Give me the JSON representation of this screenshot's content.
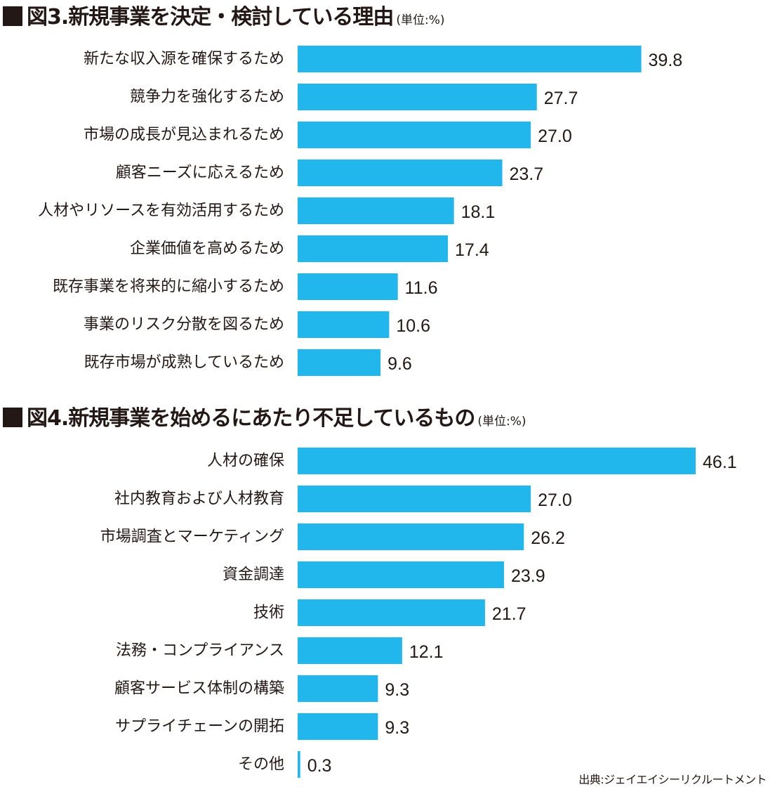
{
  "accent_color": "#21b7ec",
  "text_color": "#231815",
  "chart_data": [
    {
      "type": "bar",
      "orientation": "horizontal",
      "title": "図3.新規事業を決定・検討している理由",
      "unit": "(単位:%)",
      "categories": [
        "新たな収入源を確保するため",
        "競争力を強化するため",
        "市場の成長が見込まれるため",
        "顧客ニーズに応えるため",
        "人材やリソースを有効活用するため",
        "企業価値を高めるため",
        "既存事業を将来的に縮小するため",
        "事業のリスク分散を図るため",
        "既存市場が成熟しているため"
      ],
      "values": [
        39.8,
        27.7,
        27.0,
        23.7,
        18.1,
        17.4,
        11.6,
        10.6,
        9.6
      ],
      "value_labels": [
        "39.8",
        "27.7",
        "27.0",
        "23.7",
        "18.1",
        "17.4",
        "11.6",
        "10.6",
        "9.6"
      ],
      "xlim": [
        0,
        50
      ],
      "grid": false,
      "legend": "none"
    },
    {
      "type": "bar",
      "orientation": "horizontal",
      "title": "図4.新規事業を始めるにあたり不足しているもの",
      "unit": "(単位:%)",
      "categories": [
        "人材の確保",
        "社内教育および人材教育",
        "市場調査とマーケティング",
        "資金調達",
        "技術",
        "法務・コンプライアンス",
        "顧客サービス体制の構築",
        "サプライチェーンの開拓",
        "その他"
      ],
      "values": [
        46.1,
        27.0,
        26.2,
        23.9,
        21.7,
        12.1,
        9.3,
        9.3,
        0.3
      ],
      "value_labels": [
        "46.1",
        "27.0",
        "26.2",
        "23.9",
        "21.7",
        "12.1",
        "9.3",
        "9.3",
        "0.3"
      ],
      "xlim": [
        0,
        50
      ],
      "grid": false,
      "legend": "none"
    }
  ],
  "source": "出典:ジェイエイシーリクルートメント"
}
